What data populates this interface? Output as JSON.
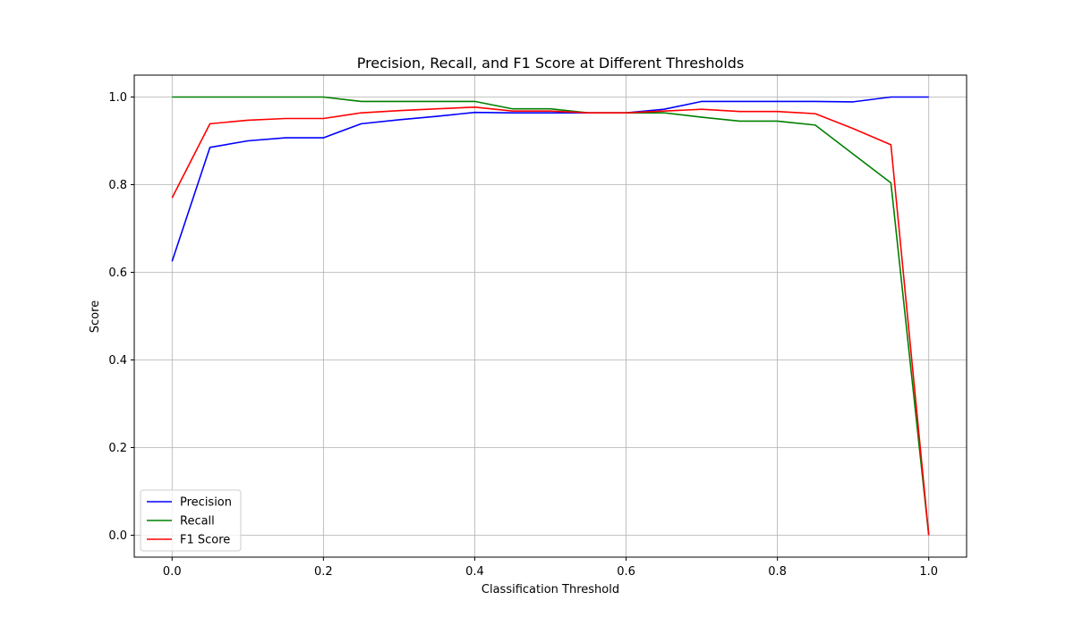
{
  "chart_data": {
    "type": "line",
    "title": "Precision, Recall, and F1 Score at Different Thresholds",
    "xlabel": "Classification Threshold",
    "ylabel": "Score",
    "xlim": [
      -0.05,
      1.05
    ],
    "ylim": [
      -0.05,
      1.05
    ],
    "xticks": [
      0.0,
      0.2,
      0.4,
      0.6,
      0.8,
      1.0
    ],
    "xtick_labels": [
      "0.0",
      "0.2",
      "0.4",
      "0.6",
      "0.8",
      "1.0"
    ],
    "yticks": [
      0.0,
      0.2,
      0.4,
      0.6,
      0.8,
      1.0
    ],
    "ytick_labels": [
      "0.0",
      "0.2",
      "0.4",
      "0.6",
      "0.8",
      "1.0"
    ],
    "grid": true,
    "legend_position": "lower-left",
    "x": [
      0.0,
      0.05,
      0.1,
      0.15,
      0.2,
      0.25,
      0.3,
      0.35,
      0.4,
      0.45,
      0.5,
      0.55,
      0.6,
      0.65,
      0.7,
      0.75,
      0.8,
      0.85,
      0.9,
      0.95,
      1.0
    ],
    "series": [
      {
        "name": "Precision",
        "color": "#0000ff",
        "values": [
          0.625,
          0.885,
          0.9,
          0.907,
          0.907,
          0.939,
          0.948,
          0.956,
          0.965,
          0.964,
          0.964,
          0.964,
          0.964,
          0.972,
          0.99,
          0.99,
          0.99,
          0.99,
          0.989,
          1.0,
          1.0
        ]
      },
      {
        "name": "Recall",
        "color": "#008000",
        "values": [
          1.0,
          1.0,
          1.0,
          1.0,
          1.0,
          0.99,
          0.99,
          0.99,
          0.99,
          0.973,
          0.973,
          0.964,
          0.964,
          0.964,
          0.954,
          0.945,
          0.945,
          0.936,
          0.87,
          0.804,
          0.0
        ]
      },
      {
        "name": "F1 Score",
        "color": "#ff0000",
        "values": [
          0.77,
          0.939,
          0.947,
          0.951,
          0.951,
          0.964,
          0.969,
          0.973,
          0.977,
          0.968,
          0.968,
          0.964,
          0.964,
          0.968,
          0.972,
          0.967,
          0.967,
          0.962,
          0.928,
          0.891,
          0.0
        ]
      }
    ]
  }
}
